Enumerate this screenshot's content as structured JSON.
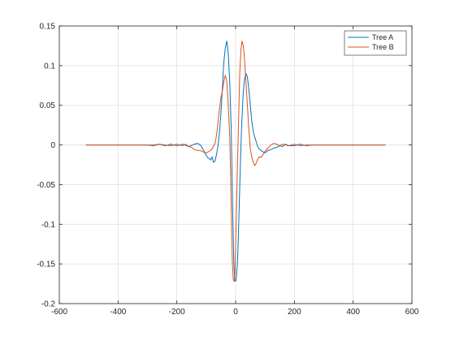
{
  "chart_data": {
    "type": "line",
    "title": "",
    "xlabel": "",
    "ylabel": "",
    "xlim": [
      -600,
      600
    ],
    "ylim": [
      -0.2,
      0.15
    ],
    "xticks": [
      -600,
      -400,
      -200,
      0,
      200,
      400,
      600
    ],
    "yticks": [
      -0.2,
      -0.15,
      -0.1,
      -0.05,
      0,
      0.05,
      0.1,
      0.15
    ],
    "xtick_labels": [
      "-600",
      "-400",
      "-200",
      "0",
      "200",
      "400",
      "600"
    ],
    "ytick_labels": [
      "-0.2",
      "-0.15",
      "-0.1",
      "-0.05",
      "0",
      "0.05",
      "0.1",
      "0.15"
    ],
    "grid": true,
    "legend_position": "top-right",
    "series": [
      {
        "name": "Tree A",
        "color": "#0072bd",
        "points": [
          [
            -510,
            0
          ],
          [
            -300,
            0
          ],
          [
            -280,
            -0.001
          ],
          [
            -260,
            0.001
          ],
          [
            -240,
            -0.001
          ],
          [
            -220,
            0.001
          ],
          [
            -200,
            -0.001
          ],
          [
            -180,
            0.001
          ],
          [
            -160,
            -0.002
          ],
          [
            -140,
            0.001
          ],
          [
            -130,
            0.002
          ],
          [
            -120,
            0.0
          ],
          [
            -110,
            -0.006
          ],
          [
            -100,
            -0.013
          ],
          [
            -95,
            -0.016
          ],
          [
            -90,
            -0.017
          ],
          [
            -85,
            -0.019
          ],
          [
            -80,
            -0.015
          ],
          [
            -75,
            -0.022
          ],
          [
            -70,
            -0.02
          ],
          [
            -65,
            -0.012
          ],
          [
            -60,
            -0.001
          ],
          [
            -55,
            0.016
          ],
          [
            -50,
            0.04
          ],
          [
            -45,
            0.072
          ],
          [
            -40,
            0.105
          ],
          [
            -35,
            0.122
          ],
          [
            -30,
            0.131
          ],
          [
            -25,
            0.115
          ],
          [
            -20,
            0.08
          ],
          [
            -15,
            0.02
          ],
          [
            -12,
            -0.04
          ],
          [
            -9,
            -0.1
          ],
          [
            -6,
            -0.15
          ],
          [
            -3,
            -0.17
          ],
          [
            0,
            -0.172
          ],
          [
            3,
            -0.165
          ],
          [
            6,
            -0.15
          ],
          [
            9,
            -0.12
          ],
          [
            12,
            -0.08
          ],
          [
            15,
            -0.04
          ],
          [
            20,
            0.02
          ],
          [
            25,
            0.06
          ],
          [
            30,
            0.083
          ],
          [
            35,
            0.09
          ],
          [
            40,
            0.086
          ],
          [
            45,
            0.07
          ],
          [
            50,
            0.05
          ],
          [
            55,
            0.03
          ],
          [
            60,
            0.017
          ],
          [
            65,
            0.01
          ],
          [
            70,
            0.004
          ],
          [
            75,
            -0.002
          ],
          [
            80,
            -0.005
          ],
          [
            90,
            -0.008
          ],
          [
            100,
            -0.01
          ],
          [
            110,
            -0.007
          ],
          [
            120,
            -0.006
          ],
          [
            130,
            -0.004
          ],
          [
            140,
            -0.003
          ],
          [
            150,
            -0.001
          ],
          [
            160,
            -0.002
          ],
          [
            170,
            0.001
          ],
          [
            180,
            -0.001
          ],
          [
            200,
            -0.001
          ],
          [
            220,
            0.001
          ],
          [
            240,
            -0.001
          ],
          [
            260,
            0.0
          ],
          [
            280,
            0.0
          ],
          [
            510,
            0
          ]
        ]
      },
      {
        "name": "Tree B",
        "color": "#d95319",
        "points": [
          [
            -510,
            0
          ],
          [
            -300,
            0
          ],
          [
            -280,
            0.0
          ],
          [
            -260,
            0.001
          ],
          [
            -240,
            0.0
          ],
          [
            -220,
            -0.001
          ],
          [
            -200,
            0.001
          ],
          [
            -180,
            -0.001
          ],
          [
            -170,
            0.001
          ],
          [
            -160,
            -0.002
          ],
          [
            -150,
            -0.003
          ],
          [
            -140,
            -0.006
          ],
          [
            -130,
            -0.007
          ],
          [
            -120,
            -0.007
          ],
          [
            -110,
            -0.009
          ],
          [
            -100,
            -0.01
          ],
          [
            -90,
            -0.008
          ],
          [
            -80,
            -0.005
          ],
          [
            -70,
            0.002
          ],
          [
            -65,
            0.012
          ],
          [
            -60,
            0.028
          ],
          [
            -55,
            0.045
          ],
          [
            -50,
            0.06
          ],
          [
            -45,
            0.068
          ],
          [
            -40,
            0.08
          ],
          [
            -35,
            0.088
          ],
          [
            -30,
            0.08
          ],
          [
            -25,
            0.05
          ],
          [
            -20,
            0.01
          ],
          [
            -17,
            -0.04
          ],
          [
            -14,
            -0.1
          ],
          [
            -11,
            -0.15
          ],
          [
            -8,
            -0.17
          ],
          [
            -5,
            -0.172
          ],
          [
            -2,
            -0.16
          ],
          [
            0,
            -0.13
          ],
          [
            3,
            -0.08
          ],
          [
            6,
            -0.03
          ],
          [
            10,
            0.03
          ],
          [
            14,
            0.09
          ],
          [
            18,
            0.12
          ],
          [
            22,
            0.131
          ],
          [
            26,
            0.125
          ],
          [
            30,
            0.11
          ],
          [
            35,
            0.08
          ],
          [
            40,
            0.05
          ],
          [
            45,
            0.02
          ],
          [
            50,
            -0.005
          ],
          [
            55,
            -0.015
          ],
          [
            60,
            -0.022
          ],
          [
            65,
            -0.026
          ],
          [
            70,
            -0.023
          ],
          [
            75,
            -0.018
          ],
          [
            80,
            -0.015
          ],
          [
            85,
            -0.016
          ],
          [
            90,
            -0.014
          ],
          [
            95,
            -0.011
          ],
          [
            100,
            -0.008
          ],
          [
            110,
            -0.004
          ],
          [
            120,
            0.0
          ],
          [
            130,
            0.002
          ],
          [
            140,
            0.001
          ],
          [
            150,
            -0.001
          ],
          [
            160,
            0.001
          ],
          [
            180,
            -0.001
          ],
          [
            200,
            0.001
          ],
          [
            220,
            -0.001
          ],
          [
            240,
            0.0
          ],
          [
            280,
            0.0
          ],
          [
            510,
            0
          ]
        ]
      }
    ]
  }
}
